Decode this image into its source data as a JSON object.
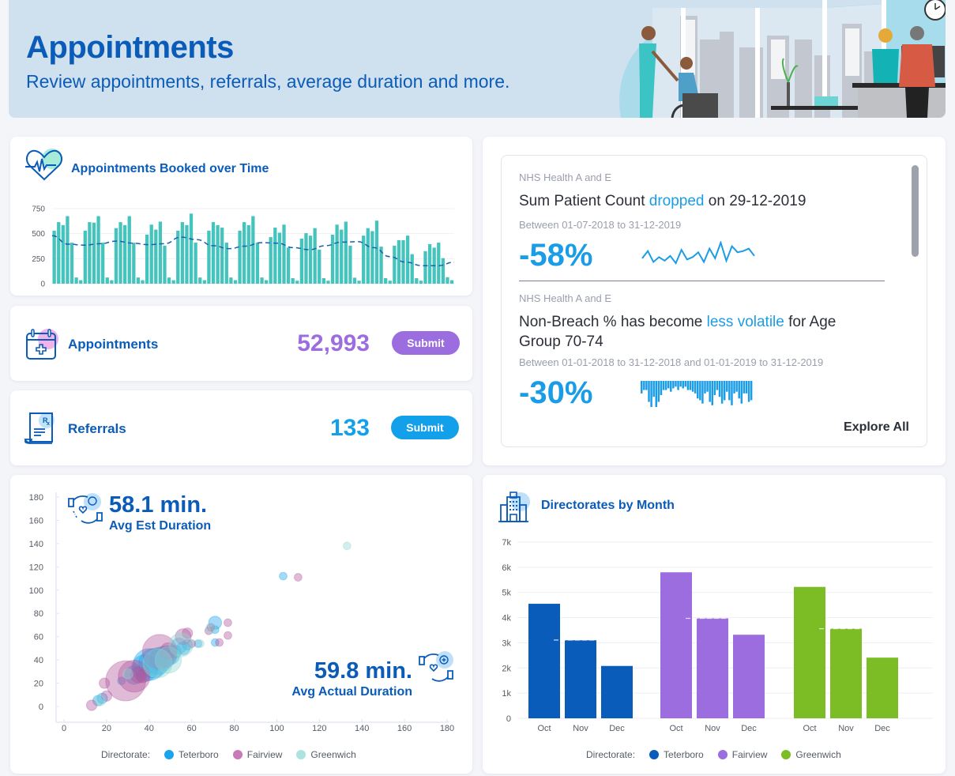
{
  "header": {
    "title": "Appointments",
    "subtitle": "Review appointments, referrals, average duration and more."
  },
  "appointments_over_time": {
    "title": "Appointments Booked over Time",
    "icon": "heart-pulse-icon",
    "color_bar": "#45c4bd",
    "color_trend": "#1b5fae"
  },
  "stats": {
    "appointments": {
      "label": "Appointments",
      "value": "52,993",
      "button": "Submit",
      "color": "#9b6ddf",
      "icon": "calendar-medical-icon"
    },
    "referrals": {
      "label": "Referrals",
      "value": "133",
      "button": "Submit",
      "color": "#13a0ea",
      "icon": "prescription-icon"
    }
  },
  "insights": {
    "items": [
      {
        "source": "NHS Health A and E",
        "headline_pre": "Sum Patient Count ",
        "headline_highlight": "dropped",
        "headline_post": " on 29-12-2019",
        "range": "Between 01-07-2018 to 31-12-2019",
        "percent": "-58%",
        "sparkline_type": "line",
        "sparkline": [
          12,
          18,
          9,
          13,
          10,
          14,
          8,
          19,
          11,
          13,
          17,
          9,
          20,
          12,
          25,
          10,
          22,
          17,
          18,
          20,
          14
        ]
      },
      {
        "source": "NHS Health A and E",
        "headline_pre": "Non-Breach % has become ",
        "headline_highlight": "less volatile",
        "headline_post": " for Age Group 70-74",
        "range": "Between 01-01-2018 to 31-12-2018 and 01-01-2019 to 31-12-2019",
        "percent": "-30%",
        "sparkline_type": "bar",
        "sparkline": [
          6,
          4,
          4,
          11,
          14,
          8,
          14,
          11,
          7,
          4,
          4,
          3,
          5,
          3,
          2,
          4,
          2,
          3,
          2,
          4,
          4,
          5,
          6,
          9,
          10,
          12,
          6,
          5,
          11,
          13,
          7,
          4,
          8,
          12,
          10,
          5,
          10,
          13,
          6,
          5,
          9,
          12,
          6,
          6,
          11,
          10
        ]
      }
    ],
    "explore_label": "Explore All"
  },
  "duration": {
    "est": {
      "value": "58.1 min.",
      "label": "Avg Est Duration",
      "icon": "caring-hands-24h-icon"
    },
    "actual": {
      "value": "59.8 min.",
      "label": "Avg Actual Duration",
      "icon": "caring-hands-plus-icon"
    }
  },
  "directorates": {
    "title": "Directorates by Month",
    "icon": "hospital-building-icon"
  },
  "chart_data": [
    {
      "type": "bar",
      "title": "Appointments Booked over Time",
      "xlabel": "",
      "ylabel": "",
      "ylim": [
        0,
        750
      ],
      "yticks": [
        0,
        250,
        500,
        750
      ],
      "grid": true,
      "values": [
        530,
        615,
        585,
        675,
        410,
        62,
        35,
        530,
        615,
        610,
        675,
        410,
        62,
        35,
        555,
        615,
        585,
        675,
        410,
        62,
        35,
        490,
        590,
        540,
        620,
        380,
        62,
        35,
        530,
        615,
        585,
        700,
        410,
        62,
        35,
        530,
        615,
        585,
        560,
        410,
        62,
        35,
        530,
        615,
        585,
        675,
        410,
        62,
        35,
        465,
        560,
        510,
        590,
        360,
        55,
        30,
        450,
        505,
        480,
        555,
        340,
        55,
        30,
        490,
        590,
        540,
        620,
        380,
        60,
        30,
        480,
        555,
        525,
        630,
        370,
        55,
        30,
        380,
        435,
        435,
        480,
        295,
        55,
        30,
        325,
        395,
        360,
        410,
        255,
        65,
        35
      ],
      "trend": [
        480,
        395,
        385,
        400,
        425,
        405,
        390,
        400,
        465,
        440,
        380,
        350,
        375,
        410,
        405,
        360,
        340,
        380,
        415,
        420,
        360,
        270,
        215,
        180,
        180,
        215
      ]
    },
    {
      "type": "scatter",
      "title": "",
      "xlabel": "Avg Est Duration",
      "ylabel": "Avg Actual Duration",
      "xlim": [
        0,
        180
      ],
      "ylim": [
        0,
        180
      ],
      "xticks": [
        0,
        20,
        40,
        60,
        80,
        100,
        120,
        140,
        160,
        180
      ],
      "yticks": [
        0,
        20,
        40,
        60,
        80,
        100,
        120,
        140,
        160,
        180
      ],
      "legend_title": "Directorate:",
      "legend_position": "bottom",
      "series": [
        {
          "name": "Teterboro",
          "color": "#1ba3ec",
          "points": [
            [
              16,
              5,
              3
            ],
            [
              18,
              7,
              3
            ],
            [
              27,
              22,
              2
            ],
            [
              33,
              27,
              6
            ],
            [
              38,
              33,
              9
            ],
            [
              40,
              36,
              11
            ],
            [
              42,
              37,
              10
            ],
            [
              44,
              39,
              9
            ],
            [
              46,
              41,
              8
            ],
            [
              48,
              43,
              7
            ],
            [
              50,
              44,
              6
            ],
            [
              52,
              47,
              4
            ],
            [
              54,
              52,
              5
            ],
            [
              56,
              50,
              4
            ],
            [
              58,
              53,
              3
            ],
            [
              63,
              54,
              2
            ],
            [
              71,
              55,
              2
            ],
            [
              71,
              66,
              2
            ],
            [
              71,
              72,
              4
            ],
            [
              103,
              112,
              2
            ]
          ]
        },
        {
          "name": "Fairview",
          "color": "#b2549c",
          "points": [
            [
              13,
              1,
              3
            ],
            [
              19,
              20,
              3
            ],
            [
              20,
              9,
              3
            ],
            [
              29,
              22,
              14
            ],
            [
              33,
              26,
              11
            ],
            [
              35,
              27,
              5
            ],
            [
              37,
              26,
              4
            ],
            [
              45,
              47,
              12
            ],
            [
              49,
              48,
              5
            ],
            [
              56,
              60,
              5
            ],
            [
              58,
              63,
              3
            ],
            [
              60,
              54,
              2
            ],
            [
              68,
              65,
              2
            ],
            [
              69,
              68,
              2
            ],
            [
              73,
              55,
              2
            ],
            [
              77,
              72,
              2
            ],
            [
              77,
              61,
              2
            ],
            [
              110,
              111,
              2
            ]
          ]
        },
        {
          "name": "Greenwich",
          "color": "#8ed6d3",
          "points": [
            [
              17,
              5,
              3
            ],
            [
              30,
              28,
              3
            ],
            [
              44,
              37,
              10
            ],
            [
              49,
              40,
              9
            ],
            [
              55,
              53,
              8
            ],
            [
              64,
              54,
              2
            ],
            [
              69,
              67,
              3
            ],
            [
              133,
              138,
              2
            ]
          ]
        }
      ],
      "bubble_size_note": "third value = relative bubble size"
    },
    {
      "type": "bar",
      "title": "Directorates by Month",
      "xlabel": "",
      "ylabel": "",
      "ylim": [
        0,
        7000
      ],
      "yticks": [
        "0",
        "1k",
        "2k",
        "3k",
        "4k",
        "5k",
        "6k",
        "7k"
      ],
      "grid": true,
      "legend_title": "Directorate:",
      "legend_position": "bottom",
      "categories": [
        "Oct",
        "Nov",
        "Dec"
      ],
      "series": [
        {
          "name": "Teterboro",
          "color": "#0a5cbb",
          "values": [
            4550,
            3100,
            2080
          ],
          "average": 3110
        },
        {
          "name": "Fairview",
          "color": "#9b6ddf",
          "values": [
            5800,
            3970,
            3320
          ],
          "average": 3970
        },
        {
          "name": "Greenwich",
          "color": "#7cbc24",
          "values": [
            5220,
            3560,
            2410
          ],
          "average": 3560
        }
      ]
    }
  ]
}
